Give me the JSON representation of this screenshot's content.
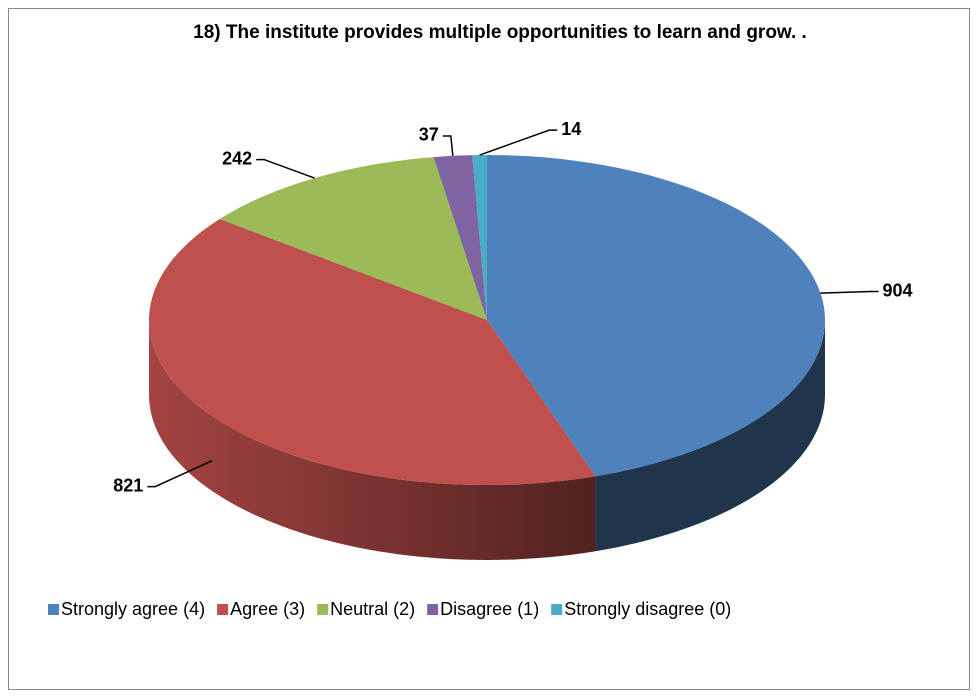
{
  "chart_data": {
    "type": "pie3d",
    "title": "18) The institute provides multiple opportunities to learn and grow. .",
    "categories": [
      "Strongly agree (4)",
      "Agree (3)",
      "Neutral (2)",
      "Disagree (1)",
      "Strongly disagree (0)"
    ],
    "values": [
      904,
      821,
      242,
      37,
      14
    ],
    "colors": [
      "#4f81bd",
      "#c0504d",
      "#9bbb59",
      "#8064a2",
      "#4bacc6"
    ],
    "legend": "bottom"
  }
}
